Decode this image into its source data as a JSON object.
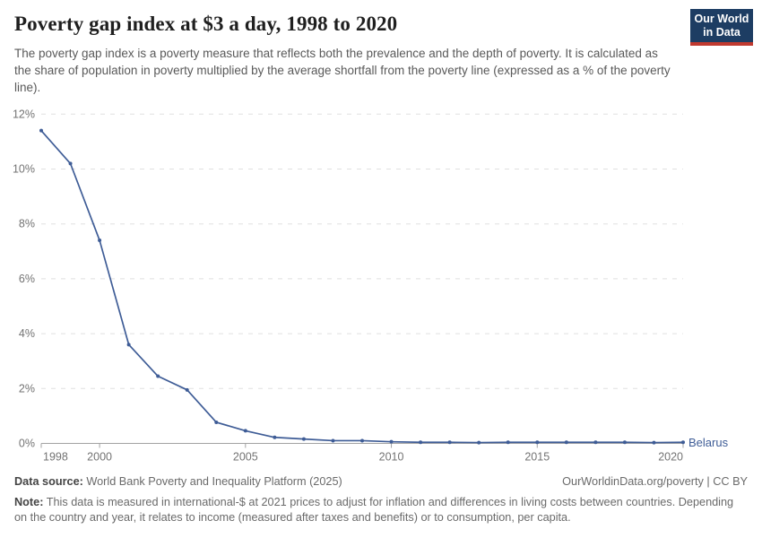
{
  "header": {
    "title": "Poverty gap index at $3 a day, 1998 to 2020",
    "subtitle": "The poverty gap index is a poverty measure that reflects both the prevalence and the depth of poverty. It is calculated as the share of population in poverty multiplied by the average shortfall from the poverty line (expressed as a % of the poverty line).",
    "logo": {
      "line1": "Our World",
      "line2": "in Data",
      "bg_color": "#1d3d63",
      "accent_color": "#c0392f"
    }
  },
  "chart_data": {
    "type": "line",
    "title": "Poverty gap index at $3 a day, 1998 to 2020",
    "x": [
      1998,
      1999,
      2000,
      2001,
      2002,
      2003,
      2004,
      2005,
      2006,
      2007,
      2008,
      2009,
      2010,
      2011,
      2012,
      2013,
      2014,
      2015,
      2016,
      2017,
      2018,
      2019,
      2020
    ],
    "series": [
      {
        "name": "Belarus",
        "color": "#3e5c96",
        "values": [
          11.4,
          10.2,
          7.4,
          3.6,
          2.45,
          1.95,
          0.77,
          0.46,
          0.22,
          0.16,
          0.1,
          0.1,
          0.06,
          0.04,
          0.04,
          0.03,
          0.04,
          0.04,
          0.04,
          0.04,
          0.04,
          0.03,
          0.04
        ]
      }
    ],
    "xlabel": "",
    "ylabel": "",
    "xlim": [
      1998,
      2020
    ],
    "ylim": [
      0,
      12
    ],
    "x_ticks_labeled": [
      1998,
      2000,
      2005,
      2010,
      2015,
      2020
    ],
    "y_ticks": [
      0,
      2,
      4,
      6,
      8,
      10,
      12
    ],
    "y_tick_suffix": "%",
    "grid": "horizontal-dashed",
    "legend_position": "end-of-line-label",
    "entity_label": "Belarus",
    "grid_color": "#e0e0e0",
    "axis_color": "#a3a3a3"
  },
  "footer": {
    "datasource_label": "Data source:",
    "datasource_text": " World Bank Poverty and Inequality Platform (2025)",
    "rights": "OurWorldinData.org/poverty | CC BY",
    "note_label": "Note:",
    "note_text": " This data is measured in international-$ at 2021 prices to adjust for inflation and differences in living costs between countries. Depending on the country and year, it relates to income (measured after taxes and benefits) or to consumption, per capita."
  }
}
